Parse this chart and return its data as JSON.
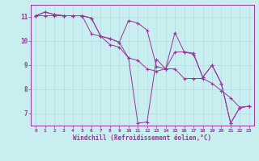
{
  "title": "",
  "xlabel": "Windchill (Refroidissement éolien,°C)",
  "ylabel": "",
  "bg_color": "#c8eef0",
  "line_color": "#993399",
  "xlim": [
    -0.5,
    23.5
  ],
  "ylim": [
    6.5,
    11.5
  ],
  "xticks": [
    0,
    1,
    2,
    3,
    4,
    5,
    6,
    7,
    8,
    9,
    10,
    11,
    12,
    13,
    14,
    15,
    16,
    17,
    18,
    19,
    20,
    21,
    22,
    23
  ],
  "yticks": [
    7,
    8,
    9,
    10,
    11
  ],
  "series": [
    {
      "x": [
        0,
        1,
        2,
        3,
        4,
        5,
        6,
        7,
        8,
        9,
        10,
        11,
        12,
        13,
        14,
        15,
        16,
        17,
        18,
        19,
        20,
        21,
        22,
        23
      ],
      "y": [
        11.05,
        11.2,
        11.1,
        11.05,
        11.05,
        11.05,
        10.95,
        10.2,
        10.1,
        9.95,
        9.3,
        6.6,
        6.65,
        9.25,
        8.85,
        10.35,
        9.55,
        9.5,
        8.5,
        9.0,
        8.25,
        6.6,
        7.25,
        7.3
      ]
    },
    {
      "x": [
        0,
        1,
        2,
        3,
        4,
        5,
        6,
        7,
        8,
        9,
        10,
        11,
        12,
        13,
        14,
        15,
        16,
        17,
        18,
        19,
        20,
        21,
        22,
        23
      ],
      "y": [
        11.05,
        11.2,
        11.1,
        11.05,
        11.05,
        11.05,
        10.95,
        10.2,
        10.1,
        9.95,
        10.85,
        10.75,
        10.45,
        8.95,
        8.85,
        9.55,
        9.55,
        9.45,
        8.5,
        9.0,
        8.25,
        6.6,
        7.25,
        7.3
      ]
    },
    {
      "x": [
        0,
        1,
        2,
        3,
        4,
        5,
        6,
        7,
        8,
        9,
        10,
        11,
        12,
        13,
        14,
        15,
        16,
        17,
        18,
        19,
        20,
        21,
        22,
        23
      ],
      "y": [
        11.05,
        11.05,
        11.05,
        11.05,
        11.05,
        11.05,
        10.3,
        10.2,
        9.85,
        9.75,
        9.3,
        9.2,
        8.85,
        8.75,
        8.85,
        8.85,
        8.45,
        8.45,
        8.45,
        8.25,
        7.95,
        7.65,
        7.25,
        7.3
      ]
    }
  ]
}
